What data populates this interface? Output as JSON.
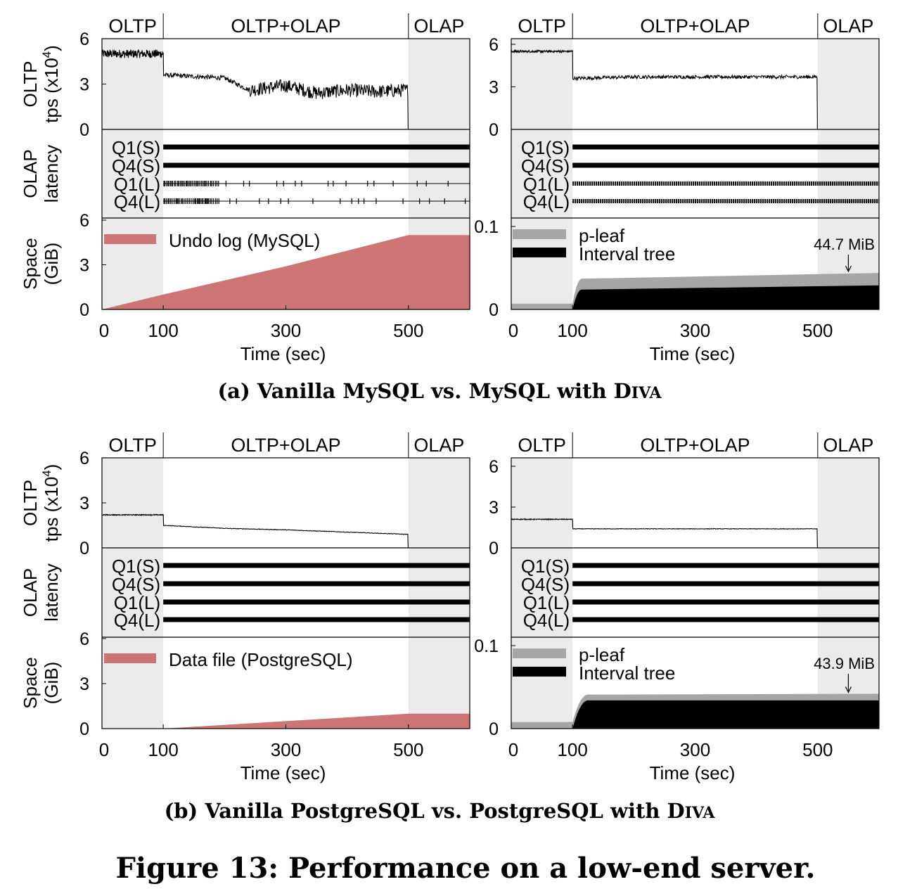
{
  "figure_caption": "Figure 13: Performance on a low-end server.",
  "subcaptions": [
    {
      "pre": "(a) Vanilla MySQL vs. MySQL with D",
      "sc": "IVA"
    },
    {
      "pre": "(b) Vanilla PostgreSQL vs. PostgreSQL with D",
      "sc": "IVA"
    }
  ],
  "phases": [
    {
      "label": "OLTP",
      "start": 0,
      "end": 100
    },
    {
      "label": "OLTP+OLAP",
      "start": 100,
      "end": 500
    },
    {
      "label": "OLAP",
      "start": 500,
      "end": 600
    }
  ],
  "xaxis": {
    "label": "Time (sec)",
    "ticks": [
      "0",
      "100",
      "300",
      "500"
    ],
    "tick_values": [
      0,
      100,
      300,
      500
    ],
    "range": [
      0,
      600
    ]
  },
  "row_labels": {
    "tps": [
      "OLTP",
      "tps (x10",
      "4",
      ")"
    ],
    "latency": [
      "OLAP",
      "latency"
    ],
    "space": [
      "Space",
      "(GiB)"
    ]
  },
  "query_labels": [
    "Q1(S)",
    "Q4(S)",
    "Q1(L)",
    "Q4(L)"
  ],
  "colors": {
    "undo": "#cd7475",
    "pleaf": "#a6a6a6",
    "interval": "#000000",
    "shade": "#ebebeb"
  },
  "chart_data": [
    {
      "panel": "a-left",
      "type": "line",
      "tps": {
        "yticks": [
          "6",
          "3",
          "0"
        ],
        "ylim": [
          0,
          6
        ],
        "x": [
          0,
          100,
          101,
          200,
          240,
          300,
          350,
          400,
          450,
          499,
          500
        ],
        "y": [
          5.0,
          5.0,
          3.6,
          3.4,
          2.6,
          2.9,
          2.4,
          2.6,
          2.5,
          2.6,
          0
        ]
      },
      "latency": {
        "queries": [
          "Q1(S)",
          "Q4(S)",
          "Q1(L)",
          "Q4(L)"
        ],
        "style": [
          "thick",
          "thick",
          "thin-sparse",
          "thin-sparse"
        ]
      },
      "space": {
        "type": "area",
        "yticks": [
          "6",
          "3",
          "0"
        ],
        "ylim": [
          0,
          6
        ],
        "series": [
          {
            "name": "Undo log (MySQL)",
            "x": [
              0,
              100,
              300,
              500,
              600
            ],
            "y": [
              0,
              1.0,
              2.9,
              5.0,
              5.0
            ]
          }
        ]
      }
    },
    {
      "panel": "a-right",
      "type": "line",
      "tps": {
        "yticks": [
          "6",
          "3",
          "0"
        ],
        "ylim": [
          0,
          6
        ],
        "x": [
          0,
          100,
          101,
          200,
          300,
          400,
          499,
          500
        ],
        "y": [
          5.5,
          5.5,
          3.6,
          3.7,
          3.7,
          3.7,
          3.7,
          0
        ]
      },
      "latency": {
        "queries": [
          "Q1(S)",
          "Q4(S)",
          "Q1(L)",
          "Q4(L)"
        ],
        "style": [
          "thick",
          "thick",
          "thick-dashed",
          "thick-dashed"
        ]
      },
      "space": {
        "type": "area",
        "yticks": [
          "0.1",
          "0"
        ],
        "ylim": [
          0,
          0.1
        ],
        "annotation": "44.7 MiB",
        "series": [
          {
            "name": "p-leaf",
            "x": [
              0,
              100,
              115,
              600
            ],
            "y": [
              0.007,
              0.007,
              0.037,
              0.044
            ]
          },
          {
            "name": "Interval tree",
            "x": [
              0,
              100,
              115,
              600
            ],
            "y": [
              0,
              0,
              0.024,
              0.029
            ]
          }
        ]
      }
    },
    {
      "panel": "b-left",
      "type": "line",
      "tps": {
        "yticks": [
          "6",
          "3",
          "0"
        ],
        "ylim": [
          0,
          6
        ],
        "x": [
          0,
          100,
          101,
          200,
          300,
          400,
          499,
          500
        ],
        "y": [
          2.2,
          2.2,
          1.5,
          1.3,
          1.2,
          1.05,
          0.9,
          0
        ]
      },
      "latency": {
        "queries": [
          "Q1(S)",
          "Q4(S)",
          "Q1(L)",
          "Q4(L)"
        ],
        "style": [
          "thick",
          "thick",
          "thick",
          "thick"
        ]
      },
      "space": {
        "type": "area",
        "yticks": [
          "6",
          "3",
          "0"
        ],
        "ylim": [
          0,
          6
        ],
        "series": [
          {
            "name": "Data file (PostgreSQL)",
            "x": [
              0,
              100,
              500,
              600
            ],
            "y": [
              0,
              0,
              1.0,
              1.0
            ]
          }
        ]
      }
    },
    {
      "panel": "b-right",
      "type": "line",
      "tps": {
        "yticks": [
          "6",
          "3",
          "0"
        ],
        "ylim": [
          0,
          6
        ],
        "x": [
          0,
          100,
          101,
          200,
          300,
          400,
          499,
          500
        ],
        "y": [
          2.1,
          2.1,
          1.4,
          1.4,
          1.4,
          1.4,
          1.4,
          0
        ]
      },
      "latency": {
        "queries": [
          "Q1(S)",
          "Q4(S)",
          "Q1(L)",
          "Q4(L)"
        ],
        "style": [
          "thick",
          "thick",
          "thick",
          "thick"
        ]
      },
      "space": {
        "type": "area",
        "yticks": [
          "0.1",
          "0"
        ],
        "ylim": [
          0,
          0.1
        ],
        "annotation": "43.9 MiB",
        "series": [
          {
            "name": "p-leaf",
            "x": [
              0,
              100,
              125,
              600
            ],
            "y": [
              0.008,
              0.008,
              0.041,
              0.042
            ]
          },
          {
            "name": "Interval tree",
            "x": [
              0,
              100,
              125,
              600
            ],
            "y": [
              0,
              0,
              0.034,
              0.034
            ]
          }
        ]
      }
    }
  ]
}
